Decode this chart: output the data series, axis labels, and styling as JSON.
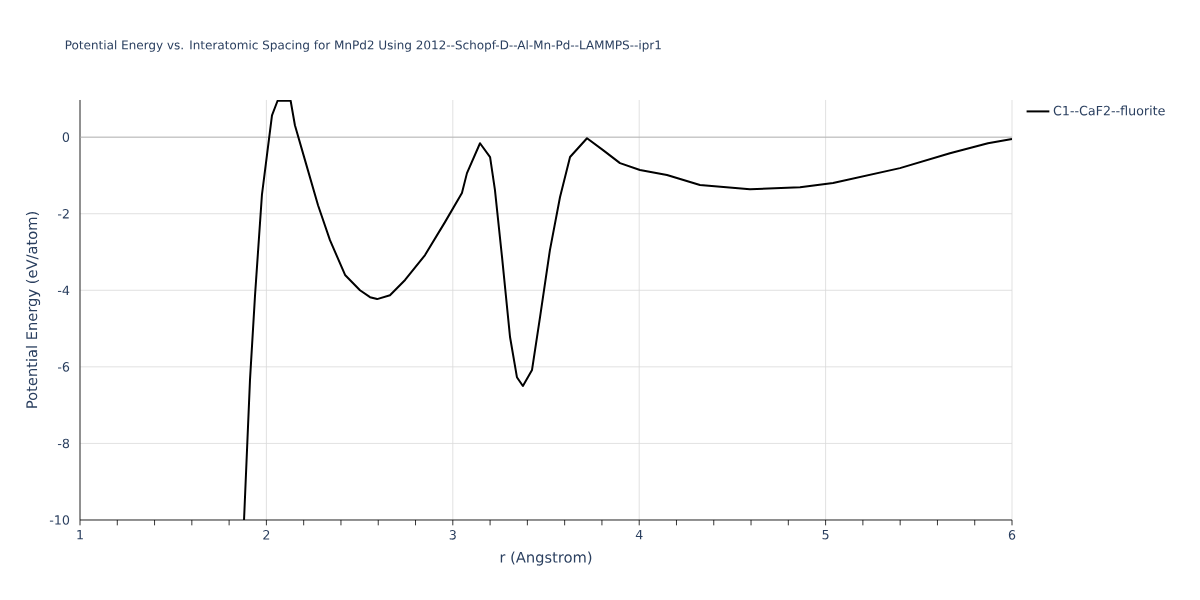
{
  "chart_data": {
    "type": "line",
    "title": "Potential Energy vs. Interatomic Spacing for MnPd2 Using 2012--Schopf-D--Al-Mn-Pd--LAMMPS--ipr1",
    "xlabel": "r (Angstrom)",
    "ylabel": "Potential Energy (eV/atom)",
    "xlim": [
      1,
      6
    ],
    "ylim": [
      -10,
      0.97
    ],
    "xticks": [
      1,
      {
        "value": 1.2,
        "label": null
      },
      {
        "value": 1.4,
        "label": null
      },
      {
        "value": 1.6,
        "label": null
      },
      {
        "value": 1.8,
        "label": null
      },
      2,
      {
        "value": 2.2,
        "label": null
      },
      {
        "value": 2.4,
        "label": null
      },
      {
        "value": 2.6,
        "label": null
      },
      {
        "value": 2.8,
        "label": null
      },
      3,
      {
        "value": 3.2,
        "label": null
      },
      {
        "value": 3.4,
        "label": null
      },
      {
        "value": 3.6,
        "label": null
      },
      {
        "value": 3.8,
        "label": null
      },
      4,
      {
        "value": 4.2,
        "label": null
      },
      {
        "value": 4.4,
        "label": null
      },
      {
        "value": 4.6,
        "label": null
      },
      {
        "value": 4.8,
        "label": null
      },
      5,
      {
        "value": 5.2,
        "label": null
      },
      {
        "value": 5.4,
        "label": null
      },
      {
        "value": 5.6,
        "label": null
      },
      {
        "value": 5.8,
        "label": null
      },
      6
    ],
    "yticks": [
      -10,
      -8,
      -6,
      -4,
      -2,
      0
    ],
    "grid": true,
    "legend": "top right",
    "marker": "none",
    "line_style": "solid",
    "series": [
      {
        "name": "C1--CaF2--fluorite",
        "color": "#000000",
        "x": [
          1.88,
          1.912,
          1.939,
          1.976,
          2.003,
          2.03,
          2.06,
          2.13,
          2.153,
          2.207,
          2.277,
          2.341,
          2.422,
          2.502,
          2.556,
          2.594,
          2.663,
          2.744,
          2.851,
          2.958,
          3.049,
          3.076,
          3.146,
          3.2,
          3.226,
          3.264,
          3.307,
          3.344,
          3.376,
          3.425,
          3.468,
          3.521,
          3.575,
          3.629,
          3.72,
          3.806,
          3.897,
          4.004,
          4.149,
          4.326,
          4.594,
          4.863,
          5.04,
          5.399,
          5.667,
          5.871,
          6.0
        ],
        "values": [
          -10,
          -6.34,
          -4.13,
          -1.51,
          -0.47,
          0.57,
          0.95,
          0.95,
          0.31,
          -0.6,
          -1.78,
          -2.69,
          -3.6,
          -4.0,
          -4.18,
          -4.23,
          -4.13,
          -3.73,
          -3.08,
          -2.22,
          -1.46,
          -0.94,
          -0.16,
          -0.52,
          -1.38,
          -3.13,
          -5.22,
          -6.27,
          -6.5,
          -6.08,
          -4.7,
          -2.95,
          -1.57,
          -0.52,
          -0.03,
          -0.34,
          -0.68,
          -0.86,
          -0.99,
          -1.25,
          -1.36,
          -1.31,
          -1.2,
          -0.81,
          -0.42,
          -0.16,
          -0.05
        ]
      }
    ]
  }
}
